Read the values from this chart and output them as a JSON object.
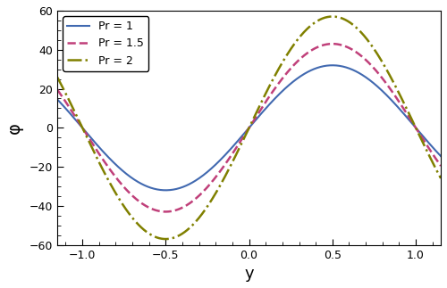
{
  "title": "",
  "xlabel": "y",
  "ylabel": "φ",
  "xlim": [
    -1.15,
    1.15
  ],
  "ylim": [
    -60,
    60
  ],
  "xticks": [
    -1.0,
    -0.5,
    0.0,
    0.5,
    1.0
  ],
  "yticks": [
    -60,
    -40,
    -20,
    0,
    20,
    40,
    60
  ],
  "curves": [
    {
      "label": "Pr = 1",
      "color": "#4169b0",
      "linestyle": "solid",
      "linewidth": 1.5,
      "amplitude": 32.0
    },
    {
      "label": "Pr = 1.5",
      "color": "#c0407a",
      "linestyle": "dashed",
      "linewidth": 1.8,
      "amplitude": 43.0
    },
    {
      "label": "Pr = 2",
      "color": "#808000",
      "linestyle": "dashdot",
      "linewidth": 1.8,
      "amplitude": 57.0
    }
  ],
  "legend_loc": "upper left",
  "background_color": "#ffffff",
  "figsize": [
    5.0,
    3.23
  ],
  "dpi": 100
}
